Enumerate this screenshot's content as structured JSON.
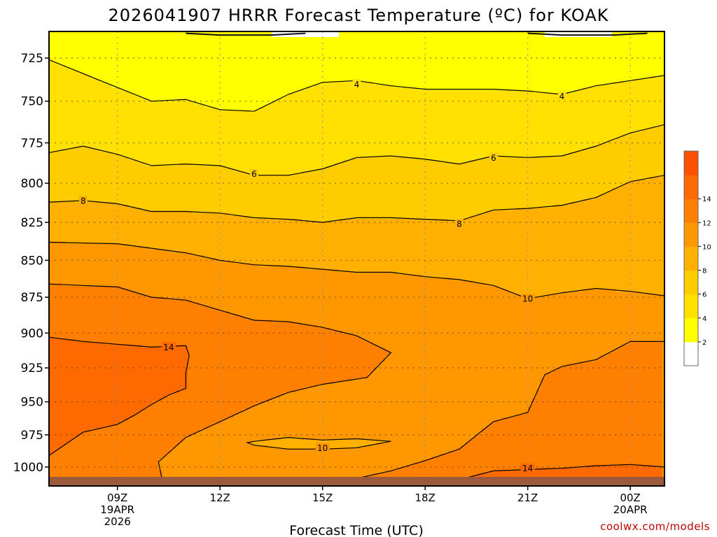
{
  "chart_data": {
    "type": "heatmap",
    "title": "2026041907 HRRR Forecast Temperature (ºC) for KOAK",
    "xlabel": "Forecast Time (UTC)",
    "ylabel": "",
    "x_ticks": [
      {
        "hour": 9,
        "lines": [
          "09Z",
          "19APR",
          "2026"
        ]
      },
      {
        "hour": 12,
        "lines": [
          "12Z"
        ]
      },
      {
        "hour": 15,
        "lines": [
          "15Z"
        ]
      },
      {
        "hour": 18,
        "lines": [
          "18Z"
        ]
      },
      {
        "hour": 21,
        "lines": [
          "21Z"
        ]
      },
      {
        "hour": 24,
        "lines": [
          "00Z",
          "20APR"
        ]
      }
    ],
    "xlim": [
      7,
      25
    ],
    "y_ticks": [
      725,
      750,
      775,
      800,
      825,
      850,
      875,
      900,
      925,
      950,
      975,
      1000
    ],
    "ylim": [
      1015,
      710
    ],
    "y_scale": "log-pressure",
    "grid": true,
    "colorbar": {
      "ticks": [
        2,
        4,
        6,
        8,
        10,
        12,
        14
      ],
      "levels": [
        0,
        2,
        4,
        6,
        8,
        10,
        12,
        14,
        16
      ],
      "colors": [
        "#ffffff",
        "#ffff00",
        "#ffe000",
        "#ffcc00",
        "#ffb000",
        "#ff9800",
        "#ff8000",
        "#ff6a00",
        "#ff5000"
      ]
    },
    "contours": [
      {
        "level": 2,
        "points": [
          [
            11,
            711
          ],
          [
            12,
            712
          ],
          [
            13.5,
            712
          ],
          [
            14.5,
            711
          ]
        ]
      },
      {
        "level": 2,
        "points": [
          [
            21,
            711
          ],
          [
            22,
            712
          ],
          [
            23.5,
            712
          ],
          [
            24.5,
            711
          ]
        ]
      },
      {
        "level": 4,
        "label_at": [
          16,
          740
        ],
        "points": [
          [
            7,
            726
          ],
          [
            8.5,
            738
          ],
          [
            10,
            750
          ],
          [
            11,
            749
          ],
          [
            12,
            755
          ],
          [
            13,
            756
          ],
          [
            14,
            746
          ],
          [
            15,
            739
          ],
          [
            16,
            738
          ],
          [
            17,
            741
          ],
          [
            18,
            743
          ],
          [
            19,
            743
          ],
          [
            20,
            743
          ],
          [
            21,
            744
          ],
          [
            22,
            746
          ],
          [
            23,
            741
          ],
          [
            24,
            738
          ],
          [
            25,
            735
          ]
        ]
      },
      {
        "level": 4,
        "label_at": [
          22,
          747
        ],
        "points": []
      },
      {
        "level": 6,
        "label_at": [
          13,
          794
        ],
        "points": [
          [
            7,
            781
          ],
          [
            8,
            777
          ],
          [
            9,
            782
          ],
          [
            10,
            789
          ],
          [
            11,
            788
          ],
          [
            12,
            789
          ],
          [
            13,
            795
          ],
          [
            14,
            795
          ],
          [
            15,
            791
          ],
          [
            16,
            784
          ],
          [
            17,
            783
          ],
          [
            18,
            785
          ],
          [
            19,
            788
          ],
          [
            20,
            783
          ],
          [
            21,
            784
          ],
          [
            22,
            783
          ],
          [
            23,
            777
          ],
          [
            24,
            769
          ],
          [
            25,
            764
          ]
        ]
      },
      {
        "level": 6,
        "label_at": [
          20,
          784
        ],
        "points": []
      },
      {
        "level": 8,
        "label_at": [
          8,
          811
        ],
        "points": [
          [
            7,
            812
          ],
          [
            8,
            811
          ],
          [
            9,
            813
          ],
          [
            10,
            818
          ],
          [
            11,
            818
          ],
          [
            12,
            819
          ],
          [
            13,
            822
          ],
          [
            14,
            823
          ],
          [
            15,
            825
          ],
          [
            16,
            822
          ],
          [
            17,
            822
          ],
          [
            18,
            823
          ],
          [
            19,
            824
          ],
          [
            20,
            817
          ],
          [
            21,
            816
          ],
          [
            22,
            814
          ],
          [
            23,
            809
          ],
          [
            24,
            799
          ],
          [
            25,
            795
          ]
        ]
      },
      {
        "level": 8,
        "label_at": [
          19,
          826
        ],
        "points": []
      },
      {
        "level": 10,
        "label_at": [
          21,
          876
        ],
        "points": [
          [
            7,
            838
          ],
          [
            9,
            839
          ],
          [
            10,
            842
          ],
          [
            11,
            845
          ],
          [
            12,
            850
          ],
          [
            13,
            853
          ],
          [
            14,
            854
          ],
          [
            15,
            856
          ],
          [
            16,
            858
          ],
          [
            17,
            858
          ],
          [
            18,
            861
          ],
          [
            19,
            863
          ],
          [
            20,
            867
          ],
          [
            21,
            876
          ],
          [
            22,
            872
          ],
          [
            23,
            869
          ],
          [
            24,
            871
          ],
          [
            25,
            874
          ]
        ]
      },
      {
        "level": 10,
        "label_at": [
          15,
          985
        ],
        "points": [
          [
            13,
            980
          ],
          [
            14,
            977
          ],
          [
            15,
            979
          ],
          [
            16,
            978
          ],
          [
            17,
            980
          ],
          [
            16,
            985
          ],
          [
            15,
            986
          ],
          [
            14,
            986
          ],
          [
            13,
            983
          ],
          [
            12.8,
            981
          ],
          [
            13,
            980
          ]
        ]
      },
      {
        "level": 12,
        "points": [
          [
            7,
            866
          ],
          [
            9,
            868
          ],
          [
            10,
            875
          ],
          [
            11,
            877
          ],
          [
            12,
            884
          ],
          [
            13,
            891
          ],
          [
            14,
            892
          ],
          [
            15,
            896
          ],
          [
            16,
            902
          ],
          [
            17,
            914
          ],
          [
            16.3,
            932
          ],
          [
            15,
            937
          ],
          [
            14,
            943
          ],
          [
            13,
            953
          ],
          [
            12,
            965
          ],
          [
            11,
            977
          ],
          [
            10.2,
            996
          ],
          [
            10.3,
            1009
          ],
          [
            10,
            1012
          ]
        ]
      },
      {
        "level": 12,
        "points": [
          [
            15.5,
            1012
          ],
          [
            17,
            1003
          ],
          [
            18,
            995
          ],
          [
            19,
            986
          ],
          [
            20,
            965
          ],
          [
            21,
            958
          ],
          [
            21.5,
            930
          ],
          [
            22,
            924
          ],
          [
            23,
            919
          ],
          [
            24,
            906
          ],
          [
            25,
            906
          ]
        ]
      },
      {
        "level": 14,
        "label_at": [
          10.5,
          910
        ],
        "points": [
          [
            7,
            903
          ],
          [
            8,
            906
          ],
          [
            10,
            910
          ],
          [
            11,
            909
          ],
          [
            11.1,
            916
          ],
          [
            11,
            929
          ],
          [
            11,
            940
          ],
          [
            10.5,
            945
          ],
          [
            10,
            952
          ],
          [
            9.5,
            960
          ],
          [
            9,
            967
          ],
          [
            8,
            973
          ],
          [
            7,
            991
          ]
        ]
      },
      {
        "level": 14,
        "label_at": [
          21,
          1001
        ],
        "points": [
          [
            19,
            1010
          ],
          [
            20,
            1003
          ],
          [
            21,
            1002
          ],
          [
            22,
            1001
          ],
          [
            23,
            999
          ],
          [
            24,
            998
          ],
          [
            25,
            1000
          ]
        ]
      }
    ],
    "annotations": [
      "4",
      "4",
      "6",
      "6",
      "8",
      "8",
      "10",
      "10",
      "14",
      "14"
    ],
    "annotation_levels": [
      4,
      4,
      6,
      6,
      8,
      8,
      10,
      10,
      14,
      14
    ],
    "annotation_positions": [
      [
        16,
        740
      ],
      [
        22,
        747
      ],
      [
        13,
        794
      ],
      [
        20,
        784
      ],
      [
        8,
        811
      ],
      [
        19,
        826
      ],
      [
        21,
        876
      ],
      [
        15,
        985
      ],
      [
        10.5,
        910
      ],
      [
        21,
        1001
      ]
    ],
    "ground_color": "#9b5a3c"
  },
  "credit": "coolwx.com/models"
}
